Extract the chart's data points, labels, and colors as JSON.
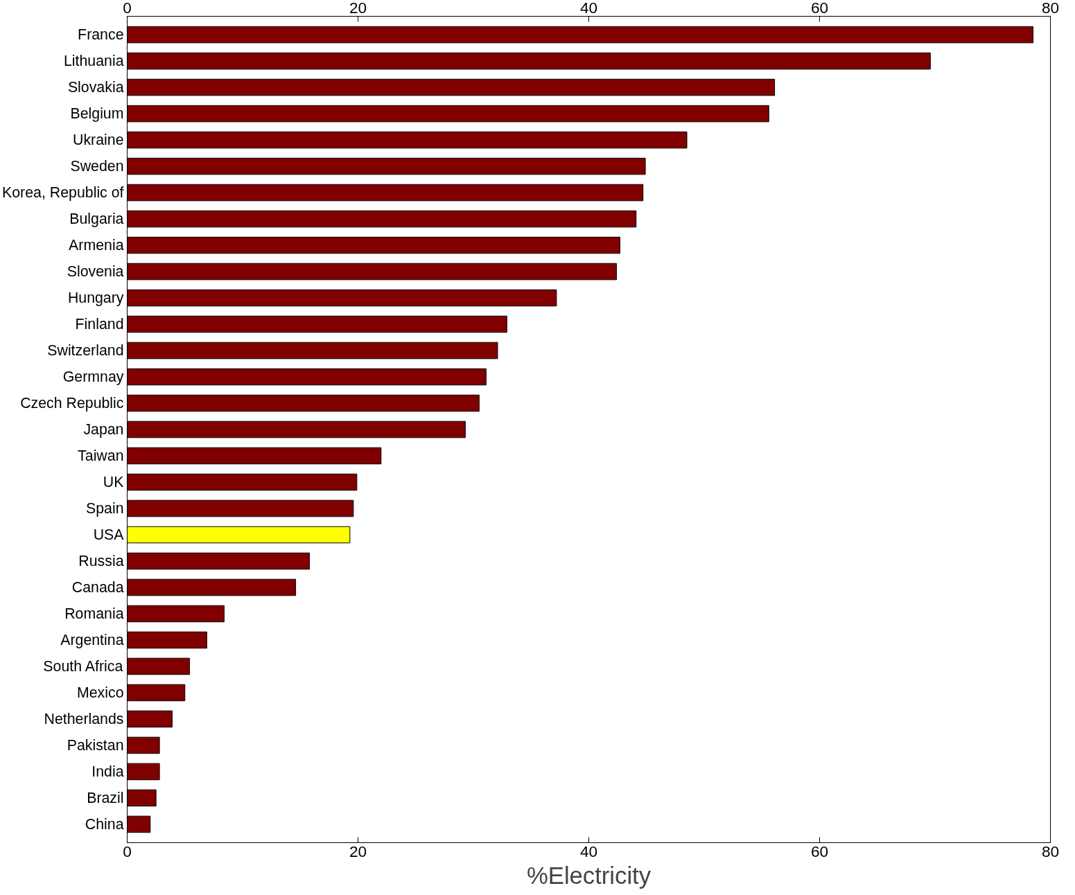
{
  "chart_data": {
    "type": "bar",
    "orientation": "horizontal",
    "xlabel": "%Electricity",
    "categories": [
      "France",
      "Lithuania",
      "Slovakia",
      "Belgium",
      "Ukraine",
      "Sweden",
      "Korea, Republic of",
      "Bulgaria",
      "Armenia",
      "Slovenia",
      "Hungary",
      "Finland",
      "Switzerland",
      "Germnay",
      "Czech Republic",
      "Japan",
      "Taiwan",
      "UK",
      "Spain",
      "USA",
      "Russia",
      "Canada",
      "Romania",
      "Argentina",
      "South Africa",
      "Mexico",
      "Netherlands",
      "Pakistan",
      "India",
      "Brazil",
      "China"
    ],
    "values": [
      78.5,
      69.6,
      56.1,
      55.6,
      48.5,
      44.9,
      44.7,
      44.1,
      42.7,
      42.4,
      37.2,
      32.9,
      32.1,
      31.1,
      30.5,
      29.3,
      22.0,
      19.9,
      19.6,
      19.3,
      15.8,
      14.6,
      8.4,
      6.9,
      5.4,
      5.0,
      3.9,
      2.8,
      2.8,
      2.5,
      2.0
    ],
    "colors": [
      "#800000",
      "#800000",
      "#800000",
      "#800000",
      "#800000",
      "#800000",
      "#800000",
      "#800000",
      "#800000",
      "#800000",
      "#800000",
      "#800000",
      "#800000",
      "#800000",
      "#800000",
      "#800000",
      "#800000",
      "#800000",
      "#800000",
      "#ffff00",
      "#800000",
      "#800000",
      "#800000",
      "#800000",
      "#800000",
      "#800000",
      "#800000",
      "#800000",
      "#800000",
      "#800000",
      "#800000"
    ],
    "xlim": [
      0,
      80
    ],
    "xticks": [
      0,
      20,
      40,
      60,
      80
    ],
    "x2lim": [
      0,
      80
    ],
    "x2ticks": [
      0,
      20,
      40,
      60,
      80
    ]
  }
}
